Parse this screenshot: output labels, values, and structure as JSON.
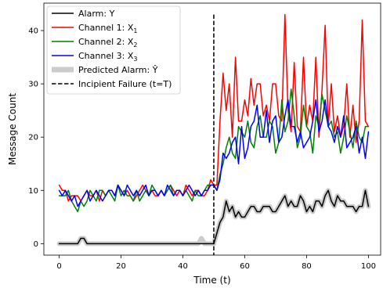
{
  "chart_data": {
    "type": "line",
    "xlabel": "Time (t)",
    "ylabel": "Message Count",
    "xlim": [
      -4.95,
      103.95
    ],
    "ylim": [
      -2.15,
      45.15
    ],
    "xticks": [
      0,
      20,
      40,
      60,
      80,
      100
    ],
    "yticks": [
      0,
      10,
      20,
      30,
      40
    ],
    "x_tick_labels": [
      "0",
      "20",
      "40",
      "60",
      "80",
      "100"
    ],
    "y_tick_labels": [
      "0",
      "10",
      "20",
      "30",
      "40"
    ],
    "grid": false,
    "legend_position": "top-left",
    "incipient_failure_t": 50,
    "series": [
      {
        "name": "Alarm: Y",
        "key": "alarm",
        "color": "#000000",
        "style": "solid",
        "values": [
          0,
          0,
          0,
          0,
          0,
          0,
          0,
          1,
          1,
          0,
          0,
          0,
          0,
          0,
          0,
          0,
          0,
          0,
          0,
          0,
          0,
          0,
          0,
          0,
          0,
          0,
          0,
          0,
          0,
          0,
          0,
          0,
          0,
          0,
          0,
          0,
          0,
          0,
          0,
          0,
          0,
          0,
          0,
          0,
          0,
          0,
          0,
          0,
          0,
          0,
          0,
          2,
          4,
          5,
          8,
          6,
          7,
          5,
          6,
          5,
          5,
          6,
          7,
          7,
          6,
          6,
          7,
          7,
          7,
          6,
          6,
          7,
          8,
          9,
          7,
          8,
          7,
          7,
          9,
          8,
          6,
          7,
          6,
          8,
          8,
          7,
          9,
          10,
          8,
          7,
          9,
          8,
          8,
          7,
          7,
          7,
          6,
          7,
          7,
          10,
          7
        ]
      },
      {
        "name": "Channel 1: X",
        "sub": "1",
        "key": "ch1",
        "color": "#ff0000",
        "style": "solid",
        "values": [
          11,
          10,
          10,
          8,
          9,
          9,
          9,
          8,
          9,
          10,
          9,
          9,
          10,
          8,
          10,
          9,
          10,
          10,
          9,
          11,
          10,
          9,
          10,
          9,
          8,
          9,
          10,
          11,
          10,
          9,
          10,
          9,
          9,
          10,
          9,
          10,
          11,
          10,
          9,
          10,
          9,
          11,
          10,
          9,
          10,
          10,
          9,
          9,
          10,
          12,
          11,
          11,
          23,
          32,
          25,
          30,
          20,
          35,
          23,
          23,
          27,
          24,
          31,
          26,
          30,
          30,
          24,
          26,
          23,
          30,
          30,
          24,
          23,
          43,
          25,
          21,
          34,
          22,
          21,
          35,
          22,
          26,
          23,
          35,
          20,
          29,
          41,
          22,
          30,
          21,
          24,
          20,
          22,
          30,
          20,
          26,
          19,
          23,
          42,
          23,
          22
        ]
      },
      {
        "name": "Channel 2: X",
        "sub": "2",
        "key": "ch2",
        "color": "#008000",
        "style": "solid",
        "values": [
          9,
          9,
          9,
          10,
          8,
          7,
          6,
          8,
          7,
          8,
          10,
          9,
          8,
          10,
          10,
          9,
          10,
          9,
          8,
          11,
          9,
          10,
          9,
          9,
          8,
          10,
          8,
          9,
          10,
          9,
          11,
          10,
          9,
          10,
          9,
          10,
          11,
          9,
          10,
          10,
          9,
          10,
          9,
          8,
          10,
          9,
          9,
          10,
          11,
          11,
          11,
          10,
          13,
          15,
          18,
          20,
          17,
          16,
          22,
          21,
          20,
          23,
          19,
          18,
          22,
          24,
          20,
          20,
          23,
          22,
          17,
          19,
          27,
          21,
          23,
          29,
          24,
          18,
          20,
          26,
          22,
          21,
          17,
          24,
          22,
          28,
          25,
          22,
          23,
          20,
          21,
          17,
          20,
          24,
          21,
          18,
          23,
          20,
          19,
          22,
          22
        ]
      },
      {
        "name": "Channel 3: X",
        "sub": "3",
        "key": "ch3",
        "color": "#0000ff",
        "style": "solid",
        "values": [
          10,
          9,
          10,
          9,
          8,
          9,
          7,
          8,
          9,
          10,
          8,
          9,
          10,
          9,
          8,
          9,
          10,
          10,
          9,
          11,
          10,
          9,
          11,
          10,
          9,
          10,
          9,
          10,
          11,
          9,
          10,
          10,
          9,
          10,
          9,
          11,
          10,
          9,
          10,
          10,
          9,
          10,
          11,
          10,
          9,
          10,
          9,
          10,
          10,
          11,
          11,
          10,
          12,
          17,
          16,
          17,
          19,
          20,
          15,
          22,
          16,
          18,
          22,
          23,
          26,
          20,
          20,
          25,
          19,
          23,
          24,
          19,
          20,
          24,
          27,
          22,
          22,
          19,
          21,
          18,
          19,
          20,
          23,
          27,
          21,
          23,
          27,
          22,
          21,
          19,
          22,
          20,
          24,
          18,
          19,
          20,
          22,
          17,
          20,
          16,
          21
        ]
      },
      {
        "name": "Predicted Alarm: Ŷ",
        "key": "pred",
        "color": "#cccccc",
        "style": "thick",
        "values": [
          0,
          0,
          0,
          0,
          0,
          0,
          0,
          1,
          1,
          0,
          0,
          0,
          0,
          0,
          0,
          0,
          0,
          0,
          0,
          0,
          0,
          0,
          0,
          0,
          0,
          0,
          0,
          0,
          0,
          0,
          0,
          0,
          0,
          0,
          0,
          0,
          0,
          0,
          0,
          0,
          0,
          0,
          0,
          0,
          0,
          0,
          1,
          0,
          0,
          0,
          0,
          2,
          4,
          5,
          8,
          6,
          7,
          5,
          6,
          5,
          5,
          6,
          7,
          7,
          6,
          6,
          7,
          7,
          7,
          6,
          6,
          7,
          8,
          9,
          7,
          8,
          7,
          7,
          9,
          8,
          6,
          7,
          6,
          8,
          8,
          7,
          9,
          10,
          8,
          7,
          9,
          8,
          8,
          7,
          7,
          7,
          6,
          7,
          7,
          10,
          7
        ]
      }
    ],
    "legend": [
      {
        "label": "Alarm: Y",
        "sub": "",
        "color": "#000000",
        "style": "solid"
      },
      {
        "label": "Channel 1: X",
        "sub": "1",
        "color": "#ff0000",
        "style": "solid"
      },
      {
        "label": "Channel 2: X",
        "sub": "2",
        "color": "#008000",
        "style": "solid"
      },
      {
        "label": "Channel 3: X",
        "sub": "3",
        "color": "#0000ff",
        "style": "solid"
      },
      {
        "label": "Predicted Alarm: Ŷ",
        "sub": "",
        "color": "#cccccc",
        "style": "thick"
      },
      {
        "label": "Incipient Failure (t=T)",
        "sub": "",
        "color": "#000000",
        "style": "dashed"
      }
    ]
  }
}
